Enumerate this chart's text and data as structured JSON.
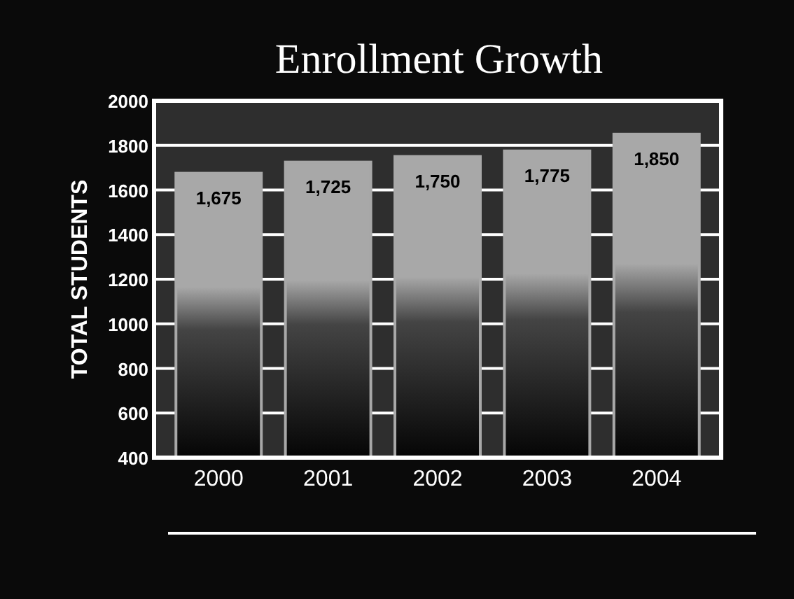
{
  "chart_data": {
    "type": "bar",
    "title": "Enrollment Growth",
    "ylabel": "TOTAL STUDENTS",
    "categories": [
      "2000",
      "2001",
      "2002",
      "2003",
      "2004"
    ],
    "values": [
      1675,
      1725,
      1750,
      1775,
      1850
    ],
    "value_labels": [
      "1,675",
      "1,725",
      "1,750",
      "1,775",
      "1,850"
    ],
    "color": "#a8a8a8",
    "ylim": [
      400,
      2000
    ],
    "yticks": [
      400,
      600,
      800,
      1000,
      1200,
      1400,
      1600,
      1800,
      2000
    ],
    "grid": "y"
  }
}
